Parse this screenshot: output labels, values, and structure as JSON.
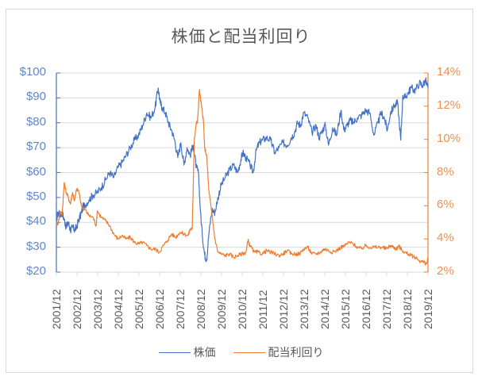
{
  "chart_data": {
    "type": "line",
    "title": "株価と配当利回り",
    "xlabel": "",
    "ylabel": "",
    "y2label": "",
    "x_tick_labels": [
      "2001/12",
      "2002/12",
      "2003/12",
      "2004/12",
      "2005/12",
      "2006/12",
      "2007/12",
      "2008/12",
      "2009/12",
      "2010/12",
      "2011/12",
      "2012/12",
      "2013/12",
      "2014/12",
      "2015/12",
      "2016/12",
      "2017/12",
      "2018/12",
      "2019/12"
    ],
    "y_left": {
      "min": 20,
      "max": 100,
      "step": 10,
      "tick_labels": [
        "$100",
        "$90",
        "$80",
        "$70",
        "$60",
        "$50",
        "$40",
        "$30",
        "$20"
      ],
      "color": "#4472c4"
    },
    "y_right": {
      "min": 2,
      "max": 14,
      "step": 2,
      "tick_labels": [
        "14%",
        "12%",
        "10%",
        "8%",
        "6%",
        "4%",
        "2%"
      ],
      "color": "#ed7d31"
    },
    "grid": true,
    "legend_position": "bottom",
    "series": [
      {
        "name": "株価",
        "axis": "left",
        "color": "#4472c4",
        "x": [
          2001.92,
          2002.0,
          2002.1,
          2002.2,
          2002.3,
          2002.4,
          2002.5,
          2002.6,
          2002.7,
          2002.8,
          2002.9,
          2003.0,
          2003.1,
          2003.2,
          2003.3,
          2003.5,
          2003.7,
          2003.9,
          2004.1,
          2004.3,
          2004.5,
          2004.7,
          2004.9,
          2005.1,
          2005.3,
          2005.5,
          2005.7,
          2005.9,
          2006.1,
          2006.3,
          2006.5,
          2006.7,
          2006.85,
          2006.95,
          2007.05,
          2007.2,
          2007.35,
          2007.5,
          2007.65,
          2007.8,
          2007.95,
          2008.1,
          2008.25,
          2008.4,
          2008.55,
          2008.7,
          2008.8,
          2008.9,
          2009.0,
          2009.1,
          2009.2,
          2009.3,
          2009.45,
          2009.6,
          2009.75,
          2009.9,
          2010.1,
          2010.3,
          2010.5,
          2010.7,
          2010.85,
          2010.95,
          2011.1,
          2011.3,
          2011.45,
          2011.6,
          2011.75,
          2011.9,
          2012.1,
          2012.3,
          2012.5,
          2012.7,
          2012.9,
          2013.1,
          2013.3,
          2013.45,
          2013.6,
          2013.75,
          2013.9,
          2014.1,
          2014.3,
          2014.5,
          2014.65,
          2014.8,
          2014.95,
          2015.1,
          2015.3,
          2015.5,
          2015.7,
          2015.85,
          2016.0,
          2016.15,
          2016.3,
          2016.5,
          2016.7,
          2016.9,
          2017.1,
          2017.3,
          2017.5,
          2017.65,
          2017.8,
          2017.95,
          2018.1,
          2018.3,
          2018.45,
          2018.6,
          2018.7,
          2018.8,
          2018.95,
          2019.1,
          2019.3,
          2019.5,
          2019.65,
          2019.8,
          2019.92
        ],
        "values": [
          41,
          44,
          43,
          44,
          41,
          38,
          40,
          37,
          38,
          37,
          38,
          41,
          43,
          46,
          47,
          49,
          51,
          52,
          54,
          57,
          60,
          58,
          62,
          64,
          67,
          70,
          73,
          75,
          79,
          84,
          82,
          86,
          94,
          88,
          86,
          84,
          80,
          77,
          73,
          66,
          72,
          63,
          70,
          67,
          71,
          62,
          60,
          44,
          34,
          27,
          25,
          35,
          45,
          44,
          50,
          55,
          58,
          61,
          63,
          60,
          65,
          68,
          66,
          63,
          60,
          69,
          72,
          73,
          74,
          73,
          68,
          70,
          72,
          71,
          74,
          76,
          80,
          79,
          84,
          82,
          76,
          79,
          74,
          77,
          79,
          71,
          78,
          75,
          85,
          77,
          79,
          81,
          80,
          82,
          83,
          85,
          84,
          75,
          80,
          84,
          82,
          77,
          84,
          87,
          88,
          73,
          91,
          90,
          92,
          94,
          93,
          96,
          95,
          97,
          94
        ]
      },
      {
        "name": "配当利回り",
        "axis": "right",
        "color": "#ed7d31",
        "x": [
          2001.92,
          2002.0,
          2002.1,
          2002.2,
          2002.3,
          2002.4,
          2002.5,
          2002.6,
          2002.7,
          2002.8,
          2002.9,
          2003.0,
          2003.1,
          2003.2,
          2003.3,
          2003.5,
          2003.7,
          2003.85,
          2003.9,
          2004.1,
          2004.3,
          2004.5,
          2004.7,
          2004.9,
          2005.1,
          2005.3,
          2005.5,
          2005.7,
          2005.9,
          2006.1,
          2006.3,
          2006.5,
          2006.7,
          2006.9,
          2007.1,
          2007.3,
          2007.5,
          2007.7,
          2007.9,
          2008.1,
          2008.3,
          2008.4,
          2008.5,
          2008.6,
          2008.7,
          2008.75,
          2008.85,
          2008.95,
          2009.05,
          2009.1,
          2009.2,
          2009.3,
          2009.45,
          2009.6,
          2009.75,
          2009.9,
          2010.1,
          2010.3,
          2010.5,
          2010.7,
          2010.9,
          2011.1,
          2011.2,
          2011.3,
          2011.5,
          2011.7,
          2011.9,
          2012.1,
          2012.3,
          2012.5,
          2012.7,
          2012.9,
          2013.1,
          2013.3,
          2013.5,
          2013.7,
          2013.9,
          2014.1,
          2014.3,
          2014.5,
          2014.7,
          2014.9,
          2015.1,
          2015.3,
          2015.5,
          2015.7,
          2015.9,
          2016.1,
          2016.3,
          2016.5,
          2016.7,
          2016.9,
          2017.1,
          2017.3,
          2017.5,
          2017.7,
          2017.9,
          2018.1,
          2018.25,
          2018.4,
          2018.5,
          2018.6,
          2018.8,
          2018.95,
          2019.1,
          2019.3,
          2019.5,
          2019.7,
          2019.85,
          2019.92
        ],
        "values": [
          5.0,
          4.9,
          5.6,
          5.5,
          7.4,
          6.8,
          6.5,
          6.1,
          6.8,
          6.3,
          7.0,
          6.9,
          6.2,
          5.8,
          5.8,
          5.4,
          5.3,
          4.8,
          5.7,
          5.3,
          5.1,
          4.8,
          4.3,
          4.0,
          4.2,
          4.0,
          4.1,
          3.8,
          3.7,
          3.8,
          3.6,
          3.4,
          3.4,
          3.2,
          3.6,
          3.9,
          4.3,
          4.1,
          4.4,
          4.3,
          4.2,
          4.6,
          4.6,
          10.0,
          11.0,
          11.0,
          13.0,
          12.0,
          11.0,
          9.5,
          9.0,
          7.0,
          5.5,
          4.0,
          3.2,
          3.1,
          3.0,
          3.1,
          2.9,
          3.0,
          3.1,
          3.2,
          3.9,
          3.6,
          3.2,
          3.2,
          3.1,
          3.3,
          3.2,
          3.1,
          3.0,
          3.1,
          3.3,
          3.1,
          3.1,
          3.1,
          3.4,
          3.5,
          3.1,
          3.1,
          3.2,
          3.4,
          3.3,
          3.2,
          3.3,
          3.5,
          3.6,
          3.8,
          3.7,
          3.5,
          3.4,
          3.6,
          3.5,
          3.5,
          3.5,
          3.5,
          3.4,
          3.6,
          3.5,
          3.4,
          3.6,
          3.4,
          3.2,
          3.1,
          3.0,
          2.9,
          2.7,
          2.6,
          2.5,
          2.8
        ]
      }
    ]
  },
  "legend": [
    {
      "label": "株価",
      "color": "#4472c4"
    },
    {
      "label": "配当利回り",
      "color": "#ed7d31"
    }
  ]
}
